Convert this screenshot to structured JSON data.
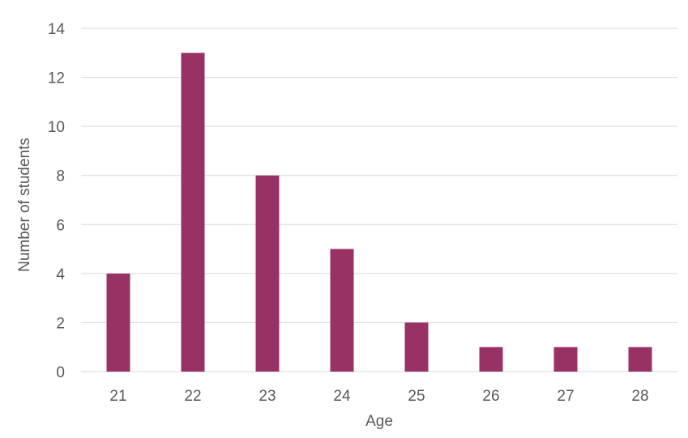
{
  "chart_data": {
    "type": "bar",
    "title": "",
    "xlabel": "Age",
    "ylabel": "Number of students",
    "categories": [
      "21",
      "22",
      "23",
      "24",
      "25",
      "26",
      "27",
      "28"
    ],
    "values": [
      4,
      13,
      8,
      5,
      2,
      1,
      1,
      1
    ],
    "ylim": [
      0,
      14
    ],
    "yticks": [
      "0",
      "2",
      "4",
      "6",
      "8",
      "10",
      "12",
      "14"
    ],
    "grid": true,
    "legend": "none",
    "bar_color": "#983264",
    "grid_color": "#d9d9d9",
    "text_color": "#595959"
  }
}
